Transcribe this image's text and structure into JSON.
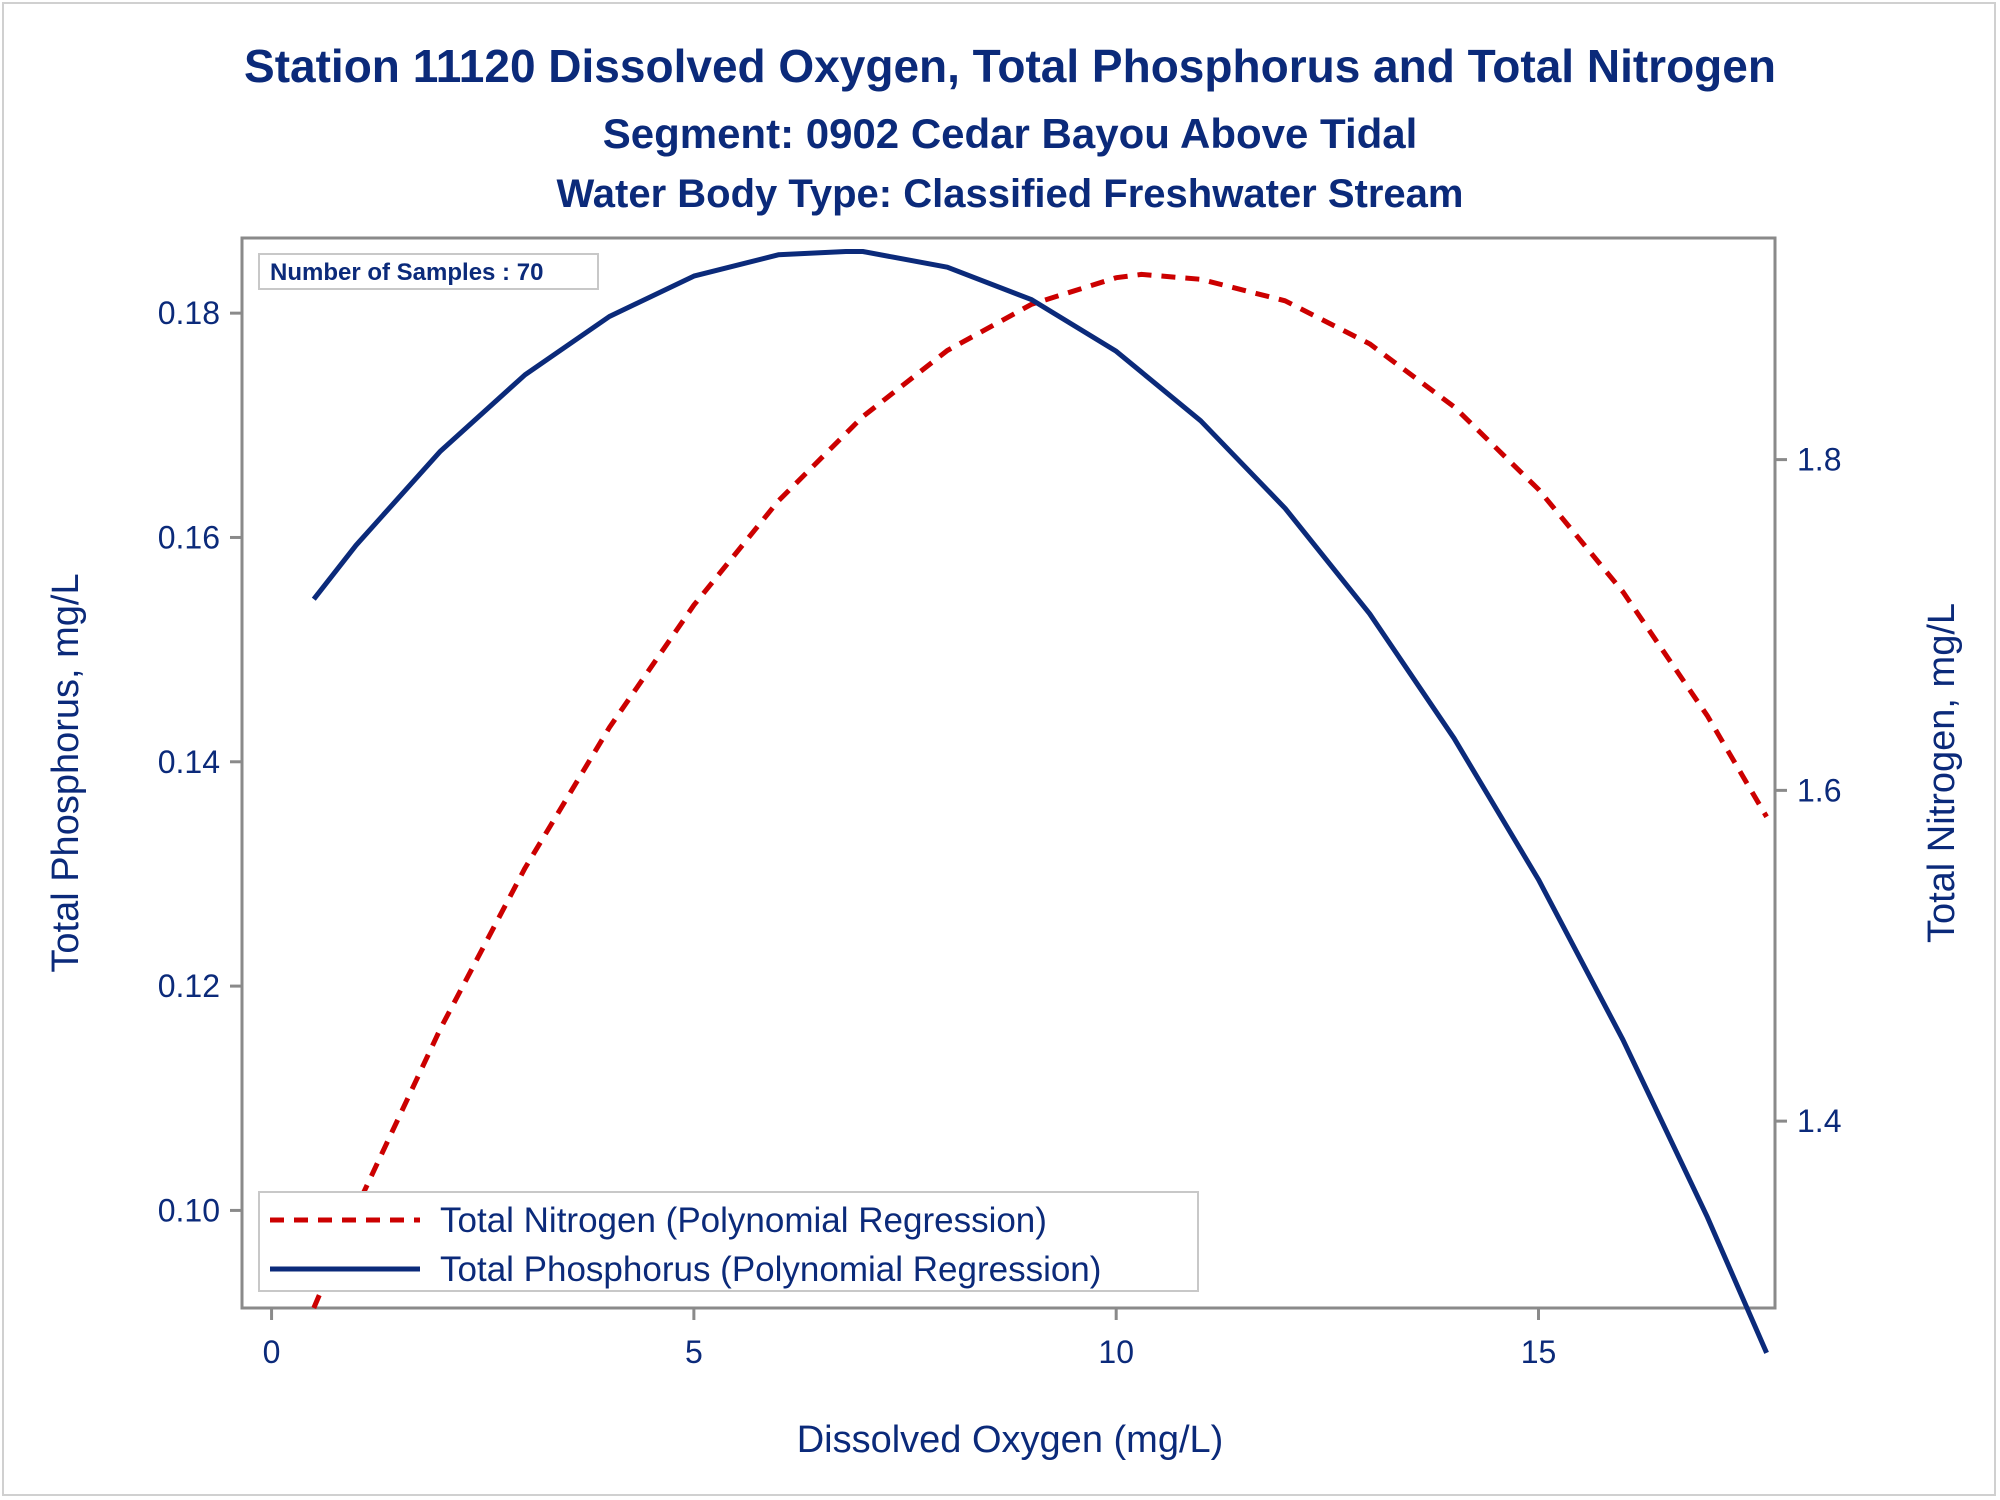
{
  "titles": {
    "main": "Station 11120  Dissolved Oxygen, Total Phosphorus and Total Nitrogen",
    "segment": "Segment: 0902  Cedar Bayou Above Tidal",
    "water_body": "Water Body Type: Classified Freshwater Stream"
  },
  "inset": {
    "label": "Number of Samples : 70"
  },
  "colors": {
    "nitrogen": "#cc0000",
    "phosphorus": "#0b2a7a",
    "text": "#0b2a7a",
    "axis": "#8a8a8a"
  },
  "chart_data": {
    "type": "line",
    "title": "Station 11120  Dissolved Oxygen, Total Phosphorus and Total Nitrogen",
    "xlabel": "Dissolved Oxygen (mg/L)",
    "ylabel": "Total Phosphorus, mg/L",
    "y2label": "Total Nitrogen, mg/L",
    "xlim": [
      -0.35,
      17.8
    ],
    "ylim": [
      0.0913,
      0.1867
    ],
    "y2lim": [
      1.287,
      1.934
    ],
    "x_ticks": [
      "0",
      "5",
      "10",
      "15"
    ],
    "y_ticks": [
      "0.10",
      "0.12",
      "0.14",
      "0.16",
      "0.18"
    ],
    "y2_ticks": [
      "1.4",
      "1.6",
      "1.8"
    ],
    "legend_position": "bottom-left, inside plot",
    "grid": false,
    "series": [
      {
        "name": "Total Nitrogen (Polynomial Regression)",
        "axis": "right",
        "style": "dashed",
        "x": [
          0.5,
          1,
          2,
          3,
          4,
          5,
          6,
          7,
          8,
          9,
          10,
          10.3,
          11,
          12,
          13,
          14,
          15,
          16,
          17,
          17.7
        ],
        "y": [
          1.287,
          1.347,
          1.456,
          1.553,
          1.638,
          1.712,
          1.775,
          1.826,
          1.866,
          1.894,
          1.91,
          1.912,
          1.909,
          1.896,
          1.87,
          1.832,
          1.782,
          1.72,
          1.645,
          1.584
        ]
      },
      {
        "name": "Total Phosphorus (Polynomial Regression)",
        "axis": "left",
        "style": "solid",
        "x": [
          0.5,
          1,
          2,
          3,
          4,
          5,
          6,
          6.8,
          7,
          8,
          9,
          10,
          11,
          12,
          13,
          14,
          15,
          16,
          17,
          17.7
        ],
        "y": [
          0.1545,
          0.1593,
          0.1677,
          0.1745,
          0.1797,
          0.1833,
          0.1852,
          0.1855,
          0.1855,
          0.1841,
          0.1812,
          0.1766,
          0.1704,
          0.1626,
          0.1532,
          0.1421,
          0.1295,
          0.1152,
          0.0994,
          0.0873
        ]
      }
    ]
  }
}
